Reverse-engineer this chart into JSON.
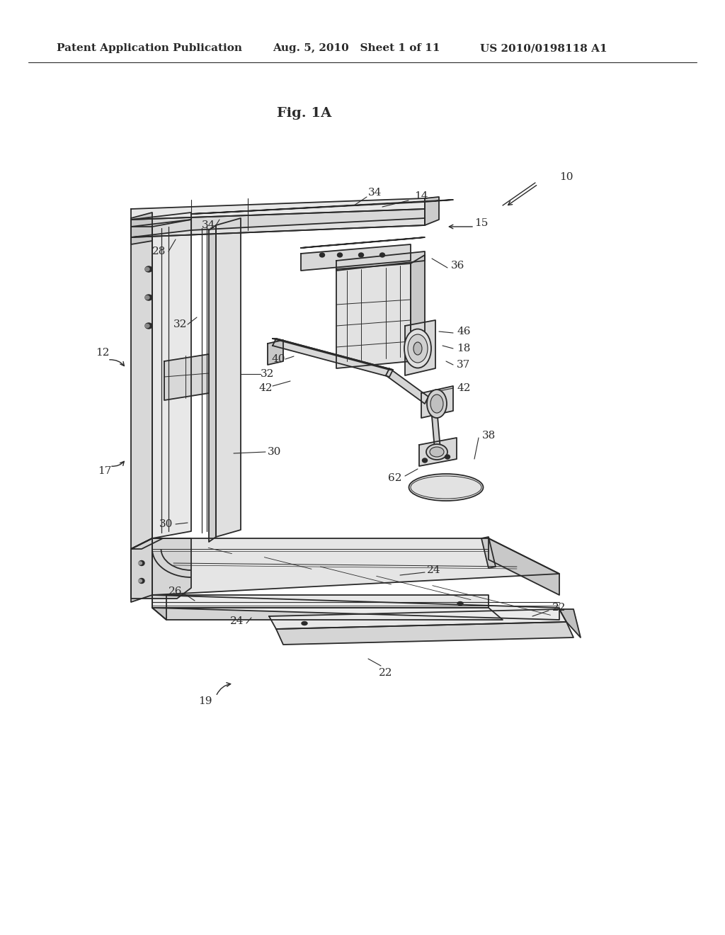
{
  "bg_color": "#ffffff",
  "line_color": "#2a2a2a",
  "title": "Fig. 1A",
  "header_left": "Patent Application Publication",
  "header_center": "Aug. 5, 2010   Sheet 1 of 11",
  "header_right": "US 2010/0198118 A1",
  "lw_main": 1.3,
  "lw_thin": 0.7,
  "figsize": [
    10.24,
    13.2
  ],
  "dpi": 100
}
